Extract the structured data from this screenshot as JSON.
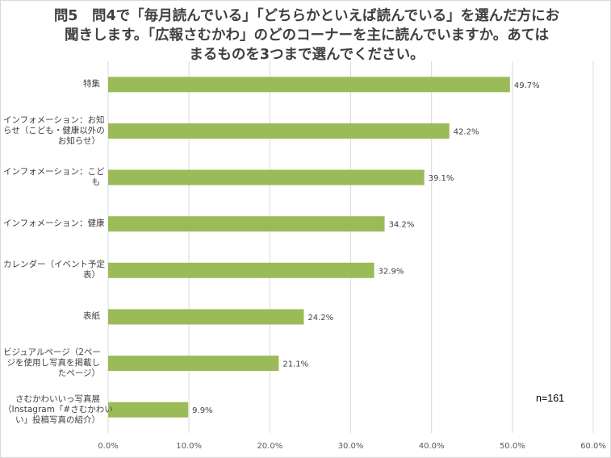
{
  "chart_data": {
    "type": "bar",
    "orientation": "horizontal",
    "title": "問5　問4で「毎月読んでいる」「どちらかといえば読んでいる」を選んだ方にお\n聞きします。「広報さむかわ」のどのコーナーを主に読んでいますか。あては\nまるものを3つまで選んでください。",
    "categories": [
      "特集",
      "インフォメーション：お知\nらせ（こども・健康以外の\nお知らせ）",
      "インフォメーション：こど\nも",
      "インフォメーション：健康",
      "カレンダー（イベント予定\n表）",
      "表紙",
      "ビジュアルページ（2ペー\nジを使用し写真を掲載し\nたページ）",
      "さむかわいいっ写真展\n（Instagram「#さむかわい\nい」投稿写真の紹介）"
    ],
    "values": [
      49.7,
      42.2,
      39.1,
      34.2,
      32.9,
      24.2,
      21.1,
      9.9
    ],
    "data_labels": [
      "49.7%",
      "42.2%",
      "39.1%",
      "34.2%",
      "32.9%",
      "24.2%",
      "21.1%",
      "9.9%"
    ],
    "xlim": [
      0,
      60
    ],
    "x_ticks": [
      "0.0%",
      "10.0%",
      "20.0%",
      "30.0%",
      "40.0%",
      "50.0%",
      "60.0%"
    ],
    "bar_color": "#9bbb59",
    "gridlines": true,
    "annotation": "n=161"
  }
}
